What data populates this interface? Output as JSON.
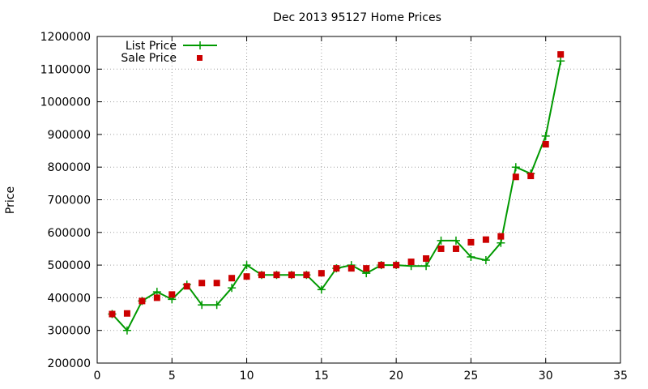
{
  "chart_data": {
    "type": "line",
    "title": "Dec 2013 95127 Home Prices",
    "xlabel": "",
    "ylabel": "Price",
    "xlim": [
      0,
      35
    ],
    "ylim": [
      200000,
      1200000
    ],
    "xticks": [
      0,
      5,
      10,
      15,
      20,
      25,
      30,
      35
    ],
    "yticks": [
      200000,
      300000,
      400000,
      500000,
      600000,
      700000,
      800000,
      900000,
      1000000,
      1100000,
      1200000
    ],
    "grid": true,
    "grid_style": "dotted",
    "legend_position": "top-left",
    "series": [
      {
        "name": "List Price",
        "style": "line-with-plus-markers",
        "color": "#009900",
        "x": [
          1,
          2,
          3,
          4,
          5,
          6,
          7,
          8,
          9,
          10,
          11,
          12,
          13,
          14,
          15,
          16,
          17,
          18,
          19,
          20,
          21,
          22,
          23,
          24,
          25,
          26,
          27,
          28,
          29,
          30,
          31
        ],
        "values": [
          350000,
          300000,
          390000,
          418000,
          395000,
          440000,
          378000,
          378000,
          430000,
          500000,
          470000,
          470000,
          470000,
          470000,
          425000,
          490000,
          500000,
          475000,
          500000,
          500000,
          497000,
          497000,
          575000,
          575000,
          525000,
          515000,
          568000,
          800000,
          780000,
          895000,
          1125000
        ]
      },
      {
        "name": "Sale Price",
        "style": "square-markers",
        "color": "#cc0000",
        "x": [
          1,
          2,
          3,
          4,
          5,
          6,
          7,
          8,
          9,
          10,
          11,
          12,
          13,
          14,
          15,
          16,
          17,
          18,
          19,
          20,
          21,
          22,
          23,
          24,
          25,
          26,
          27,
          28,
          29,
          30,
          31
        ],
        "values": [
          350000,
          352000,
          390000,
          400000,
          410000,
          435000,
          445000,
          445000,
          460000,
          465000,
          470000,
          470000,
          470000,
          470000,
          475000,
          490000,
          490000,
          490000,
          500000,
          500000,
          510000,
          520000,
          550000,
          550000,
          570000,
          578000,
          588000,
          770000,
          773000,
          870000,
          1145000
        ]
      }
    ]
  }
}
